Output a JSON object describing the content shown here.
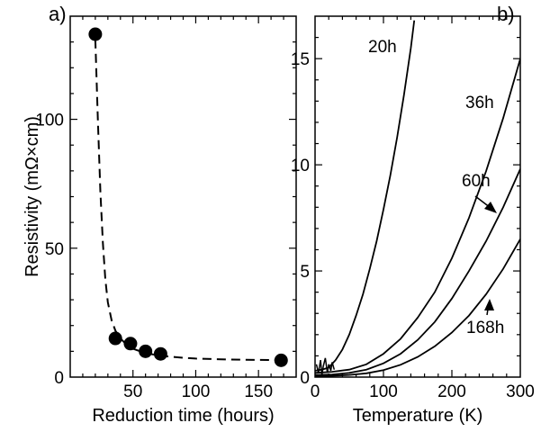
{
  "chart_data": [
    {
      "type": "scatter",
      "panel_label": "a)",
      "xlabel": "Reduction time (hours)",
      "ylabel": "Resistivity (mΩ×cm)",
      "xlim": [
        0,
        180
      ],
      "ylim": [
        0,
        140
      ],
      "x_ticks": [
        50,
        100,
        150
      ],
      "y_ticks": [
        0,
        50,
        100
      ],
      "series": [
        {
          "points": [
            {
              "x": 20,
              "y": 133
            },
            {
              "x": 36,
              "y": 15
            },
            {
              "x": 48,
              "y": 13
            },
            {
              "x": 60,
              "y": 10
            },
            {
              "x": 72,
              "y": 9
            },
            {
              "x": 168,
              "y": 6.5
            }
          ]
        }
      ],
      "fit_line": {
        "style": "dashed",
        "points": [
          [
            20,
            131
          ],
          [
            22,
            100
          ],
          [
            24,
            72
          ],
          [
            26,
            52
          ],
          [
            28,
            38
          ],
          [
            30,
            29
          ],
          [
            33,
            22
          ],
          [
            36,
            18
          ],
          [
            40,
            15
          ],
          [
            45,
            12.5
          ],
          [
            50,
            11
          ],
          [
            60,
            9.3
          ],
          [
            70,
            8.5
          ],
          [
            80,
            7.9
          ],
          [
            90,
            7.5
          ],
          [
            100,
            7.2
          ],
          [
            120,
            6.9
          ],
          [
            140,
            6.7
          ],
          [
            168,
            6.6
          ]
        ]
      }
    },
    {
      "type": "line",
      "panel_label": "b)",
      "xlabel": "Temperature (K)",
      "ylabel": "",
      "xlim": [
        0,
        300
      ],
      "ylim": [
        0,
        17
      ],
      "x_ticks": [
        0,
        100,
        200,
        300
      ],
      "y_ticks": [
        0,
        5,
        10,
        15
      ],
      "series": [
        {
          "name": "20h",
          "x": [
            0,
            10,
            20,
            30,
            40,
            50,
            60,
            70,
            80,
            90,
            100,
            110,
            120,
            130,
            140,
            145
          ],
          "y": [
            0.3,
            0.35,
            0.45,
            0.8,
            1.3,
            2.0,
            2.9,
            3.9,
            5.1,
            6.4,
            7.9,
            9.5,
            11.3,
            13.3,
            15.5,
            16.8
          ]
        },
        {
          "name": "36h",
          "x": [
            0,
            25,
            50,
            75,
            100,
            125,
            150,
            175,
            200,
            225,
            250,
            275,
            300
          ],
          "y": [
            0.2,
            0.25,
            0.35,
            0.6,
            1.1,
            1.8,
            2.8,
            4.0,
            5.6,
            7.5,
            9.7,
            12.2,
            15.0
          ]
        },
        {
          "name": "60h",
          "x": [
            0,
            25,
            50,
            75,
            100,
            125,
            150,
            175,
            200,
            225,
            250,
            275,
            300
          ],
          "y": [
            0.1,
            0.12,
            0.2,
            0.35,
            0.65,
            1.1,
            1.75,
            2.6,
            3.7,
            5.0,
            6.4,
            8.0,
            9.8
          ]
        },
        {
          "name": "168h",
          "x": [
            0,
            25,
            50,
            75,
            100,
            125,
            150,
            175,
            200,
            225,
            250,
            275,
            300
          ],
          "y": [
            0.05,
            0.06,
            0.1,
            0.18,
            0.33,
            0.58,
            0.95,
            1.45,
            2.1,
            2.9,
            3.9,
            5.1,
            6.5
          ]
        }
      ]
    }
  ]
}
